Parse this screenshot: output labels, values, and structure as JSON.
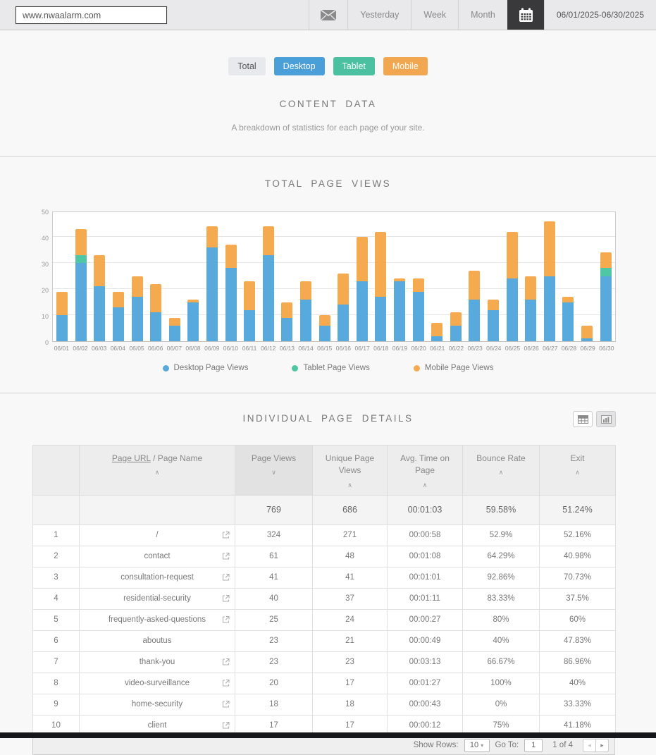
{
  "toolbar": {
    "url_input_value": "www.nwaalarm.com",
    "mail_icon": "envelope-icon",
    "tabs": {
      "yesterday": "Yesterday",
      "week": "Week",
      "month": "Month"
    },
    "calendar_icon": "calendar-icon",
    "date_range": "06/01/2025-06/30/2025"
  },
  "filters": [
    {
      "label": "Total",
      "bg": "#e7e9ec",
      "fg": "#555555"
    },
    {
      "label": "Desktop",
      "bg": "#4b9fd8",
      "fg": "#ffffff"
    },
    {
      "label": "Tablet",
      "bg": "#4cc1a1",
      "fg": "#ffffff"
    },
    {
      "label": "Mobile",
      "bg": "#f1a750",
      "fg": "#ffffff"
    }
  ],
  "content_header": {
    "title": "CONTENT DATA",
    "subtitle": "A breakdown of statistics for each page of your site."
  },
  "chart_section_title": "TOTAL PAGE VIEWS",
  "chart_data": {
    "type": "bar",
    "stacked": true,
    "title": "TOTAL PAGE VIEWS",
    "categories": [
      "06/01",
      "06/02",
      "06/03",
      "06/04",
      "06/05",
      "06/06",
      "06/07",
      "06/08",
      "06/09",
      "06/10",
      "06/11",
      "06/12",
      "06/13",
      "06/14",
      "06/15",
      "06/16",
      "06/17",
      "06/18",
      "06/19",
      "06/20",
      "06/21",
      "06/22",
      "06/23",
      "06/24",
      "06/25",
      "06/26",
      "06/27",
      "06/28",
      "06/29",
      "06/30"
    ],
    "series": [
      {
        "name": "Desktop Page Views",
        "color": "#57aadb",
        "values": [
          10,
          30,
          21,
          13,
          17,
          11,
          6,
          15,
          36,
          28,
          12,
          33,
          9,
          16,
          6,
          14,
          23,
          17,
          23,
          19,
          2,
          6,
          16,
          12,
          24,
          16,
          25,
          15,
          1,
          25
        ]
      },
      {
        "name": "Tablet Page Views",
        "color": "#4fc6a4",
        "values": [
          0,
          3,
          0,
          0,
          0,
          0,
          0,
          0,
          0,
          0,
          0,
          0,
          0,
          0,
          0,
          0,
          0,
          0,
          0,
          0,
          0,
          0,
          0,
          0,
          0,
          0,
          0,
          0,
          0,
          3
        ]
      },
      {
        "name": "Mobile Page Views",
        "color": "#f5aa50",
        "values": [
          9,
          10,
          12,
          6,
          8,
          11,
          3,
          1,
          8,
          9,
          11,
          11,
          6,
          7,
          4,
          12,
          17,
          25,
          1,
          5,
          5,
          5,
          11,
          4,
          18,
          9,
          21,
          2,
          5,
          6
        ]
      }
    ],
    "ylim": [
      0,
      50
    ],
    "yticks": [
      0,
      10,
      20,
      30,
      40,
      50
    ],
    "xlabel": "",
    "ylabel": "",
    "grid": true,
    "legend_position": "bottom"
  },
  "table_section": {
    "title": "INDIVIDUAL PAGE DETAILS",
    "columns": [
      {
        "label": "",
        "sort": null
      },
      {
        "label_link": "Page URL",
        "label_rest": " / Page Name",
        "sort": "asc"
      },
      {
        "label": "Page Views",
        "sort": "desc",
        "sorted": true
      },
      {
        "label": "Unique Page Views",
        "sort": "asc"
      },
      {
        "label": "Avg. Time on Page",
        "sort": "asc"
      },
      {
        "label": "Bounce Rate",
        "sort": "asc"
      },
      {
        "label": "Exit",
        "sort": "asc"
      }
    ],
    "summary": {
      "page_views": "769",
      "unique_page_views": "686",
      "avg_time": "00:01:03",
      "bounce_rate": "59.58%",
      "exit": "51.24%"
    },
    "rows": [
      {
        "rank": "1",
        "name": "/",
        "has_link": true,
        "page_views": "324",
        "unique": "271",
        "avg_time": "00:00:58",
        "bounce": "52.9%",
        "exit": "52.16%"
      },
      {
        "rank": "2",
        "name": "contact",
        "has_link": true,
        "page_views": "61",
        "unique": "48",
        "avg_time": "00:01:08",
        "bounce": "64.29%",
        "exit": "40.98%"
      },
      {
        "rank": "3",
        "name": "consultation-request",
        "has_link": true,
        "page_views": "41",
        "unique": "41",
        "avg_time": "00:01:01",
        "bounce": "92.86%",
        "exit": "70.73%"
      },
      {
        "rank": "4",
        "name": "residential-security",
        "has_link": true,
        "page_views": "40",
        "unique": "37",
        "avg_time": "00:01:11",
        "bounce": "83.33%",
        "exit": "37.5%"
      },
      {
        "rank": "5",
        "name": "frequently-asked-questions",
        "has_link": true,
        "page_views": "25",
        "unique": "24",
        "avg_time": "00:00:27",
        "bounce": "80%",
        "exit": "60%"
      },
      {
        "rank": "6",
        "name": "aboutus",
        "has_link": false,
        "page_views": "23",
        "unique": "21",
        "avg_time": "00:00:49",
        "bounce": "40%",
        "exit": "47.83%"
      },
      {
        "rank": "7",
        "name": "thank-you",
        "has_link": true,
        "page_views": "23",
        "unique": "23",
        "avg_time": "00:03:13",
        "bounce": "66.67%",
        "exit": "86.96%"
      },
      {
        "rank": "8",
        "name": "video-surveillance",
        "has_link": true,
        "page_views": "20",
        "unique": "17",
        "avg_time": "00:01:27",
        "bounce": "100%",
        "exit": "40%"
      },
      {
        "rank": "9",
        "name": "home-security",
        "has_link": true,
        "page_views": "18",
        "unique": "18",
        "avg_time": "00:00:43",
        "bounce": "0%",
        "exit": "33.33%"
      },
      {
        "rank": "10",
        "name": "client",
        "has_link": true,
        "page_views": "17",
        "unique": "17",
        "avg_time": "00:00:12",
        "bounce": "75%",
        "exit": "41.18%"
      }
    ],
    "pagination": {
      "show_rows_label": "Show Rows:",
      "show_rows_value": "10",
      "goto_label": "Go To:",
      "goto_value": "1",
      "page_info": "1 of 4",
      "prev_icon": "left-arrow-icon",
      "next_icon": "right-arrow-icon"
    }
  }
}
